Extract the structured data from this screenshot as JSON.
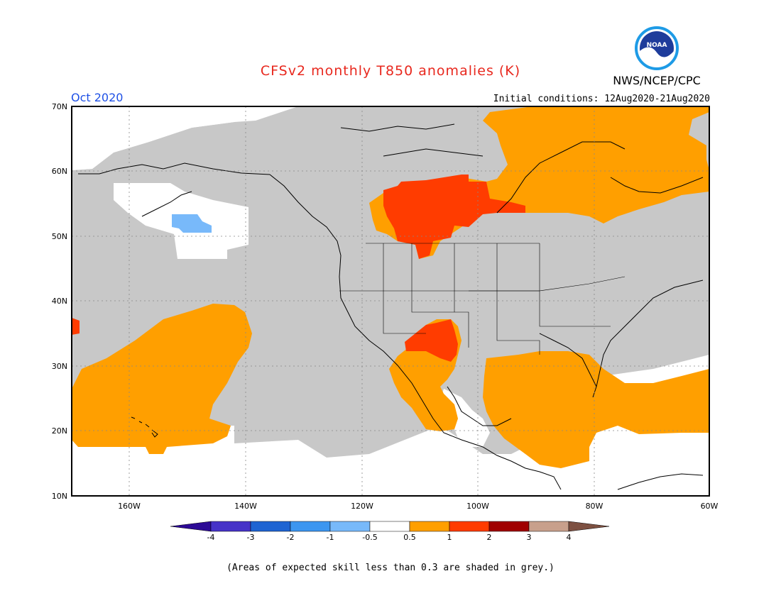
{
  "header": {
    "title": "CFSv2 monthly T850 anomalies (K)",
    "org_label": "NWS/NCEP/CPC",
    "logo_text": "NOAA",
    "month": "Oct 2020",
    "initial_conditions": "Initial conditions: 12Aug2020-21Aug2020"
  },
  "map": {
    "lat_ticks": [
      "70N",
      "60N",
      "50N",
      "40N",
      "30N",
      "20N",
      "10N"
    ],
    "lon_ticks": [
      "160W",
      "140W",
      "120W",
      "100W",
      "80W",
      "60W"
    ]
  },
  "legend": {
    "labels": [
      "-4",
      "-3",
      "-2",
      "-1",
      "-0.5",
      "0.5",
      "1",
      "2",
      "3",
      "4"
    ],
    "colors": [
      "#2d0a96",
      "#4633c8",
      "#1e64d2",
      "#3c96f0",
      "#78b9fa",
      "#ffffff",
      "#ff9f00",
      "#ff3c00",
      "#a00000",
      "#c8a08c",
      "#7d5041"
    ]
  },
  "colors": {
    "grey_low_skill": "#c8c8c8",
    "anomaly_0_5_to_1": "#ff9f00",
    "anomaly_1_to_2": "#ff3c00",
    "anomaly_neg_0_5_to_neg_1": "#78b9fa",
    "title_red": "#e8281e",
    "month_blue": "#1e50e6"
  },
  "footnote": "(Areas of expected skill less than 0.3 are shaded in grey.)"
}
